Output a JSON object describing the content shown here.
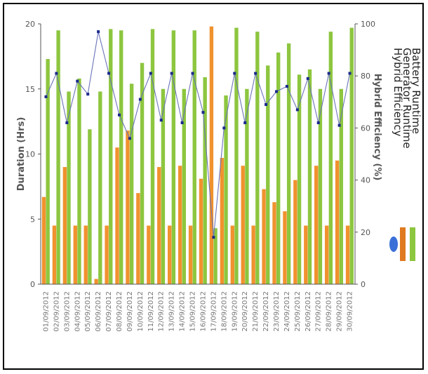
{
  "chart_data": {
    "type": "bar",
    "categories": [
      "01/09/2012",
      "02/09/2012",
      "03/09/2012",
      "04/09/2012",
      "05/09/2012",
      "06/09/2012",
      "07/09/2012",
      "08/09/2012",
      "09/09/2012",
      "10/09/2012",
      "11/09/2012",
      "12/09/2012",
      "13/09/2012",
      "14/09/2012",
      "15/09/2012",
      "16/09/2012",
      "17/09/2012",
      "18/09/2012",
      "19/09/2012",
      "20/09/2012",
      "21/09/2012",
      "22/09/2012",
      "23/09/2012",
      "24/09/2012",
      "25/09/2012",
      "26/09/2012",
      "27/09/2012",
      "28/09/2012",
      "29/09/2012",
      "30/09/2012"
    ],
    "series": [
      {
        "name": "Battery Runtime",
        "kind": "bar",
        "axis": "left",
        "color": "#8dc63f",
        "values": [
          17.3,
          19.5,
          14.8,
          15.8,
          11.9,
          14.8,
          19.6,
          19.5,
          15.4,
          17.0,
          19.6,
          15.0,
          19.5,
          15.0,
          19.5,
          15.9,
          4.3,
          14.5,
          19.7,
          15.0,
          19.4,
          16.8,
          17.8,
          18.5,
          16.1,
          16.5,
          15.0,
          19.4,
          15.0,
          19.7
        ]
      },
      {
        "name": "Generator Runtime",
        "kind": "bar",
        "axis": "left",
        "color": "#f0922e",
        "values": [
          6.7,
          4.5,
          9.0,
          4.5,
          4.5,
          0.4,
          4.5,
          10.5,
          11.8,
          7.0,
          4.5,
          9.0,
          4.5,
          9.1,
          4.5,
          8.1,
          19.8,
          9.7,
          4.5,
          9.1,
          4.5,
          7.3,
          6.3,
          5.6,
          8.0,
          4.5,
          9.1,
          4.5,
          9.5,
          4.5
        ]
      },
      {
        "name": "Hybrid Efficiency",
        "kind": "line",
        "axis": "right",
        "color": "#1a2a8c",
        "values": [
          72,
          81,
          62,
          78,
          73,
          97,
          81,
          65,
          56,
          71,
          81,
          63,
          81,
          62,
          81,
          66,
          18,
          60,
          81,
          62,
          81,
          69,
          74,
          76,
          67,
          79,
          62,
          81,
          61,
          81
        ]
      }
    ],
    "left_axis": {
      "label": "Duration (Hrs)",
      "ylim": [
        0,
        20
      ],
      "ticks": [
        0,
        5,
        10,
        15,
        20
      ]
    },
    "right_axis": {
      "label": "Hybrid Efficiency (%)",
      "ylim": [
        0,
        100
      ],
      "ticks": [
        0,
        20,
        40,
        60,
        80,
        100
      ]
    },
    "legend": {
      "placement": "right",
      "items": [
        {
          "label": "Battery Runtime",
          "color": "#8dc63f",
          "shape": "bar"
        },
        {
          "label": "Generator Runtime",
          "color": "#e07a20",
          "shape": "bar"
        },
        {
          "label": "Hybrid Efficiency",
          "color": "#3a6fd8",
          "shape": "dot"
        }
      ]
    },
    "grid": false
  }
}
